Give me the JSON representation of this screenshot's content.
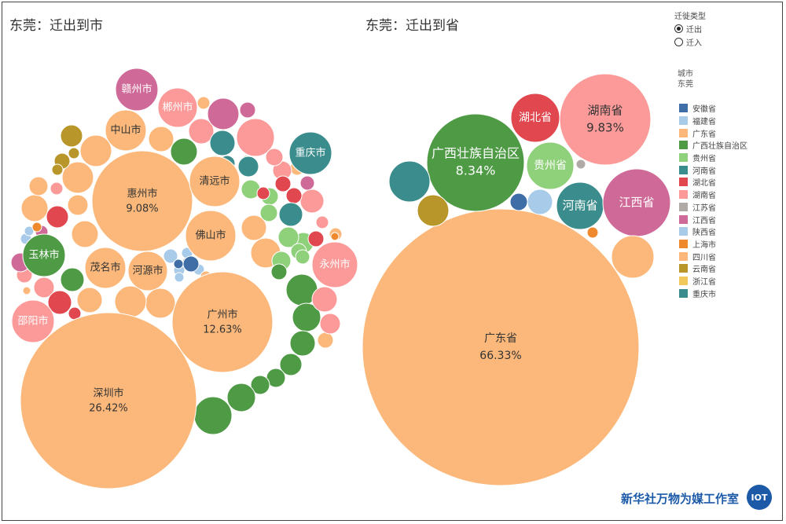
{
  "colors": {
    "广东省": "#fbb87a",
    "广西壮族自治区": "#4e9a45",
    "广西浅": "#8fd07a",
    "湖南省": "#fb9a98",
    "湖北省": "#e0474f",
    "江西省": "#cf6a98",
    "重庆市": "#3b8c8c",
    "安徽省": "#3e6ea5",
    "福建省": "#a7cbe8",
    "江苏省": "#b0aaa7",
    "贵州省": "#8fd07a",
    "河南省": "#3b8c8c",
    "陕西省": "#a7cbe8",
    "上海市": "#ee8a2d",
    "四川省": "#fbb87a",
    "云南省": "#b9962a",
    "浙江省": "#f2c75c"
  },
  "header": {
    "left_title": "东莞：迁出到市",
    "right_title": "东莞：迁出到省"
  },
  "controls": {
    "title": "迁徙类型",
    "options": [
      "迁出",
      "迁入"
    ],
    "selected": "迁出"
  },
  "filter": {
    "label": "城市",
    "value": "东莞"
  },
  "legend": {
    "items": [
      "安徽省",
      "福建省",
      "广东省",
      "广西壮族自治区",
      "贵州省",
      "河南省",
      "湖北省",
      "湖南省",
      "江苏省",
      "江西省",
      "陕西省",
      "上海市",
      "四川省",
      "云南省",
      "浙江省",
      "重庆市"
    ]
  },
  "footer": {
    "brand": "新华社万物为媒工作室",
    "logo_text": "IOT"
  },
  "chart_data": [
    {
      "type": "bubble",
      "title": "东莞：迁出到市",
      "bubbles": [
        {
          "name": "深圳市",
          "value_label": "26.42%",
          "value": 26.42,
          "province": "广东省"
        },
        {
          "name": "广州市",
          "value_label": "12.63%",
          "value": 12.63,
          "province": "广东省"
        },
        {
          "name": "惠州市",
          "value_label": "9.08%",
          "value": 9.08,
          "province": "广东省"
        },
        {
          "name": "清远市",
          "value_label": "",
          "province": "广东省"
        },
        {
          "name": "佛山市",
          "value_label": "",
          "province": "广东省"
        },
        {
          "name": "中山市",
          "value_label": "",
          "province": "广东省"
        },
        {
          "name": "茂名市",
          "value_label": "",
          "province": "广东省"
        },
        {
          "name": "河源市",
          "value_label": "",
          "province": "广东省"
        },
        {
          "name": "赣州市",
          "value_label": "",
          "province": "江西省"
        },
        {
          "name": "郴州市",
          "value_label": "",
          "province": "湖南省"
        },
        {
          "name": "重庆市",
          "value_label": "",
          "province": "重庆市"
        },
        {
          "name": "玉林市",
          "value_label": "",
          "province": "广西壮族自治区"
        },
        {
          "name": "永州市",
          "value_label": "",
          "province": "湖南省"
        },
        {
          "name": "邵阳市",
          "value_label": "",
          "province": "湖南省"
        }
      ]
    },
    {
      "type": "bubble",
      "title": "东莞：迁出到省",
      "bubbles": [
        {
          "name": "广东省",
          "value_label": "66.33%",
          "value": 66.33
        },
        {
          "name": "湖南省",
          "value_label": "9.83%",
          "value": 9.83
        },
        {
          "name": "广西壮族自治区",
          "value_label": "8.34%",
          "value": 8.34
        },
        {
          "name": "湖北省",
          "value_label": ""
        },
        {
          "name": "贵州省",
          "value_label": ""
        },
        {
          "name": "河南省",
          "value_label": ""
        },
        {
          "name": "江西省",
          "value_label": ""
        },
        {
          "name": "重庆市",
          "value_label": ""
        },
        {
          "name": "云南省",
          "value_label": ""
        },
        {
          "name": "安徽省",
          "value_label": ""
        },
        {
          "name": "福建省",
          "value_label": ""
        },
        {
          "name": "江苏省",
          "value_label": ""
        },
        {
          "name": "上海市",
          "value_label": ""
        },
        {
          "name": "四川省",
          "value_label": ""
        }
      ]
    }
  ]
}
